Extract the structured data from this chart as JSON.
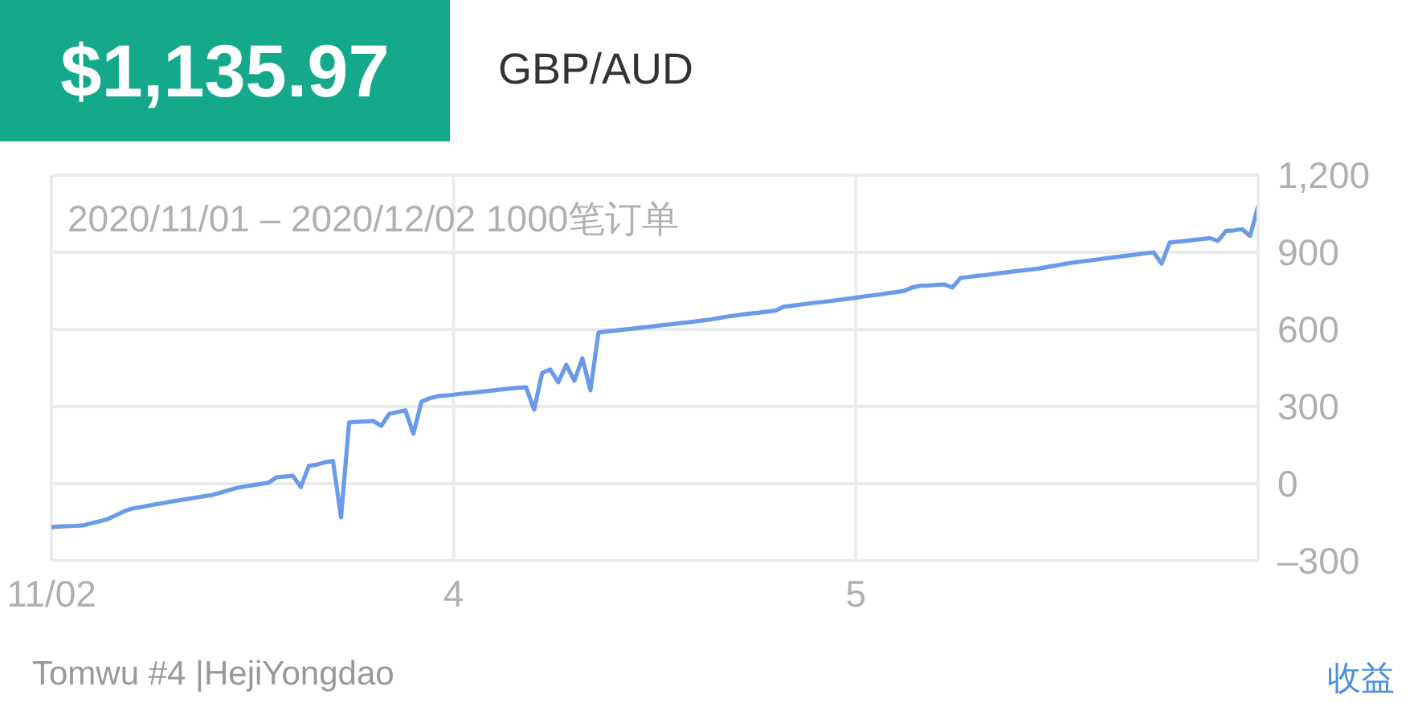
{
  "chart_data": {
    "type": "line",
    "title": "$1,135.97",
    "subtitle": "GBP/AUD",
    "annotations": [
      "2020/11/01 – 2020/12/02 1000笔订单",
      "Tomwu #4 |HejiYongdao",
      "收益"
    ],
    "categories": [
      "11/02",
      null,
      null,
      null,
      null,
      null,
      null,
      null,
      null,
      null,
      null,
      null,
      null,
      null,
      null,
      null,
      null,
      null,
      null,
      null,
      null,
      null,
      null,
      null,
      null,
      null,
      null,
      null,
      null,
      null,
      null,
      null,
      null,
      null,
      null,
      null,
      null,
      null,
      null,
      null,
      null,
      null,
      null,
      null,
      null,
      null,
      null,
      null,
      null,
      null,
      "4",
      null,
      null,
      null,
      null,
      null,
      null,
      null,
      null,
      null,
      null,
      null,
      null,
      null,
      null,
      null,
      null,
      null,
      null,
      null,
      null,
      null,
      null,
      null,
      null,
      null,
      null,
      null,
      null,
      null,
      null,
      null,
      null,
      null,
      null,
      null,
      null,
      null,
      null,
      null,
      null,
      null,
      null,
      null,
      null,
      null,
      null,
      null,
      null,
      null,
      "5",
      null,
      null,
      null,
      null,
      null,
      null,
      null,
      null,
      null,
      null,
      null,
      null,
      null,
      null,
      null,
      null,
      null,
      null,
      null,
      null,
      null,
      null,
      null,
      null,
      null,
      null,
      null,
      null,
      null,
      null,
      null,
      null,
      null,
      null,
      null,
      null,
      null,
      null,
      null,
      null,
      null,
      null,
      null,
      null,
      null,
      null,
      null,
      null,
      null,
      null
    ],
    "series": [
      {
        "color": "#6a9ae8",
        "values": [
          -169,
          -167,
          -165,
          -164,
          -162,
          -154,
          -146,
          -138,
          -123,
          -108,
          -97,
          -92,
          -86,
          -80,
          -75,
          -69,
          -64,
          -59,
          -54,
          -49,
          -44,
          -35,
          -26,
          -17,
          -11,
          -6,
          -1,
          4,
          25,
          28,
          31,
          -13,
          69,
          74,
          83,
          88,
          -131,
          238,
          240,
          242,
          244,
          225,
          272,
          278,
          285,
          194,
          319,
          332,
          340,
          343,
          346,
          350,
          353,
          356,
          360,
          363,
          367,
          370,
          373,
          375,
          288,
          431,
          444,
          394,
          463,
          400,
          488,
          363,
          588,
          592,
          595,
          599,
          602,
          606,
          609,
          613,
          617,
          620,
          624,
          627,
          631,
          635,
          639,
          644,
          650,
          654,
          658,
          662,
          665,
          669,
          673,
          688,
          692,
          696,
          700,
          704,
          707,
          711,
          715,
          719,
          723,
          728,
          732,
          736,
          741,
          745,
          750,
          763,
          770,
          771,
          773,
          775,
          763,
          800,
          804,
          808,
          811,
          815,
          819,
          823,
          827,
          830,
          834,
          838,
          844,
          849,
          855,
          860,
          864,
          868,
          872,
          876,
          880,
          884,
          888,
          892,
          896,
          900,
          856,
          938,
          941,
          944,
          948,
          951,
          955,
          944,
          983,
          985,
          990,
          963,
          1081
        ]
      }
    ],
    "ylim": [
      -300,
      1200
    ],
    "yticks": [
      {
        "value": -300,
        "label": "–300"
      },
      0,
      300,
      600,
      900,
      {
        "value": 1200,
        "label": "1,200"
      }
    ],
    "grid": true
  }
}
